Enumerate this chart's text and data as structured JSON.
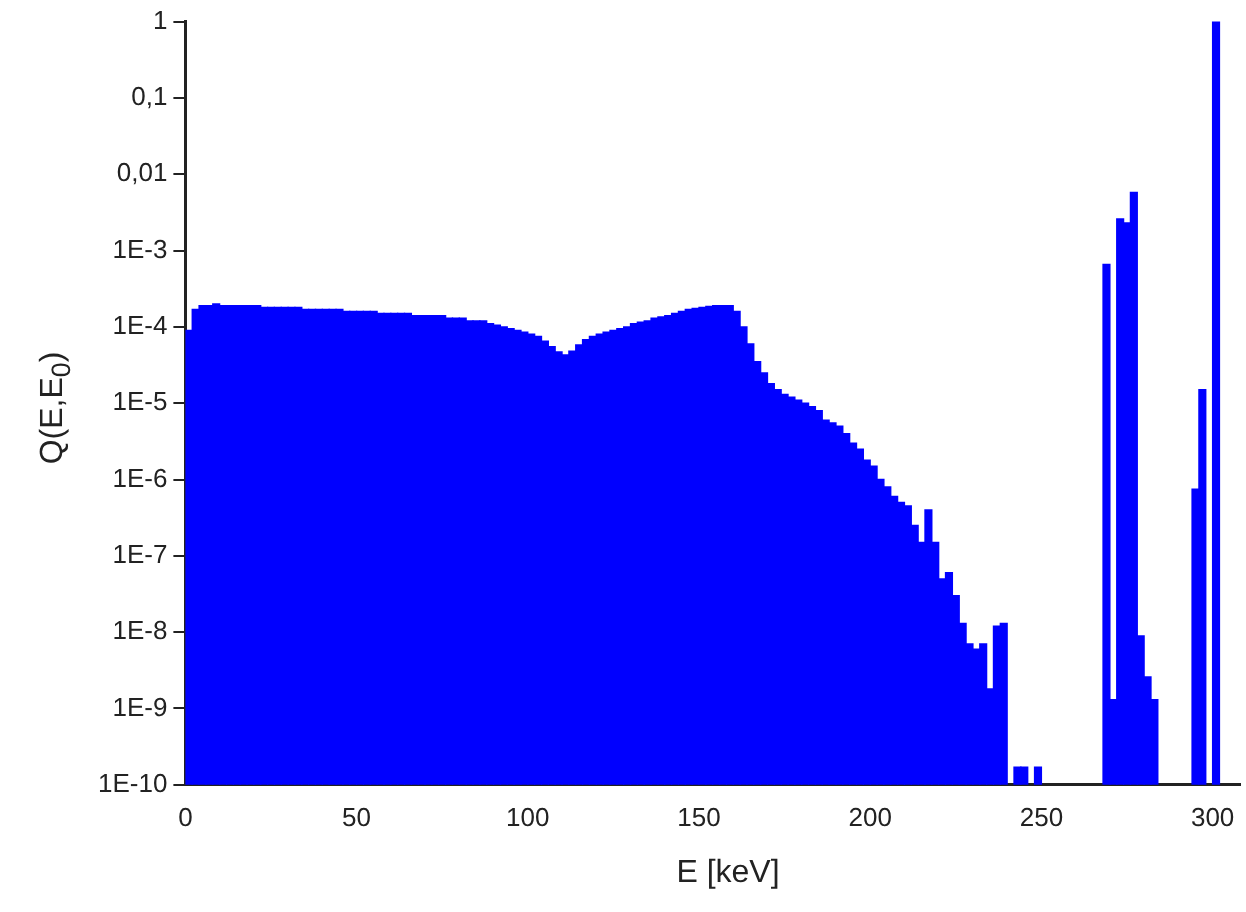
{
  "chart_data": {
    "type": "histogram",
    "xlabel": "E [keV]",
    "ylabel": "Q(E,E$_{0}$)",
    "log": "y",
    "grid": false,
    "color": "#0000ff",
    "xlim": [
      0,
      308
    ],
    "xticks": [
      0,
      50,
      100,
      150,
      200,
      250,
      300
    ],
    "ylim": [
      1e-10,
      1
    ],
    "yticks": [
      1,
      {
        "value": 0.1,
        "label": "0,1"
      },
      {
        "value": 0.01,
        "label": "0,01"
      },
      {
        "value": 0.001,
        "label": "1E-3"
      },
      {
        "value": 0.0001,
        "label": "1E-4"
      },
      {
        "value": 1e-05,
        "label": "1E-5"
      },
      {
        "value": 1e-06,
        "label": "1E-6"
      },
      {
        "value": 1e-07,
        "label": "1E-7"
      },
      {
        "value": 1e-08,
        "label": "1E-8"
      },
      {
        "value": 1e-09,
        "label": "1E-9"
      },
      {
        "value": 1e-10,
        "label": "1E-10"
      }
    ],
    "bins": [
      0,
      2,
      4,
      6,
      8,
      10,
      12,
      14,
      16,
      18,
      20,
      22,
      24,
      26,
      28,
      30,
      32,
      34,
      36,
      38,
      40,
      42,
      44,
      46,
      48,
      50,
      52,
      54,
      56,
      58,
      60,
      62,
      64,
      66,
      68,
      70,
      72,
      74,
      76,
      78,
      80,
      82,
      84,
      86,
      88,
      90,
      92,
      94,
      96,
      98,
      100,
      102,
      104,
      106,
      108,
      110,
      112,
      114,
      116,
      118,
      120,
      122,
      124,
      126,
      128,
      130,
      132,
      134,
      136,
      138,
      140,
      142,
      144,
      146,
      148,
      150,
      152,
      154,
      156,
      158,
      160,
      162,
      164,
      166,
      168,
      170,
      172,
      174,
      176,
      178,
      180,
      182,
      184,
      186,
      188,
      190,
      192,
      194,
      196,
      198,
      200,
      202,
      204,
      206,
      208,
      210,
      212,
      214,
      216,
      218,
      220,
      222,
      224,
      226,
      228,
      230,
      232,
      234,
      236,
      238,
      240,
      242,
      244,
      246,
      248,
      250,
      252,
      254,
      256,
      258,
      260,
      262,
      264,
      266,
      268,
      270,
      272,
      274,
      276,
      278,
      280,
      282,
      284,
      286,
      288,
      290,
      292,
      294,
      296,
      298,
      300,
      302
    ],
    "values": [
      9e-05,
      0.00017,
      0.00019,
      0.00019,
      0.0002,
      0.00019,
      0.00019,
      0.00019,
      0.00019,
      0.00019,
      0.00019,
      0.00018,
      0.00018,
      0.00018,
      0.00018,
      0.00018,
      0.00018,
      0.00017,
      0.00017,
      0.00017,
      0.00017,
      0.00017,
      0.00017,
      0.00016,
      0.00016,
      0.00016,
      0.00016,
      0.00016,
      0.00015,
      0.00015,
      0.00015,
      0.00015,
      0.00015,
      0.00014,
      0.00014,
      0.00014,
      0.00014,
      0.00014,
      0.00013,
      0.00013,
      0.00013,
      0.00012,
      0.00012,
      0.00012,
      0.00011,
      0.000105,
      0.0001,
      9.5e-05,
      9e-05,
      8.5e-05,
      8e-05,
      7.5e-05,
      6.5e-05,
      5.5e-05,
      4.7e-05,
      4.3e-05,
      4.8e-05,
      5.8e-05,
      6.8e-05,
      7.5e-05,
      8e-05,
      8.5e-05,
      9e-05,
      9.5e-05,
      0.0001,
      0.00011,
      0.000115,
      0.00012,
      0.00013,
      0.000135,
      0.00014,
      0.00015,
      0.00016,
      0.00017,
      0.000175,
      0.00018,
      0.000185,
      0.00019,
      0.00019,
      0.00019,
      0.00016,
      0.0001,
      6e-05,
      3.5e-05,
      2.5e-05,
      1.8e-05,
      1.5e-05,
      1.3e-05,
      1.2e-05,
      1.1e-05,
      1e-05,
      9e-06,
      8e-06,
      6e-06,
      5.5e-06,
      5e-06,
      4e-06,
      3e-06,
      2.5e-06,
      1.8e-06,
      1.5e-06,
      1e-06,
      8e-07,
      6e-07,
      5e-07,
      4.5e-07,
      2.5e-07,
      1.5e-07,
      4e-07,
      1.5e-07,
      5e-08,
      6e-08,
      3e-08,
      1.3e-08,
      7e-09,
      6e-09,
      7e-09,
      1.8e-09,
      1.2e-08,
      1.3e-08,
      null,
      1.7e-10,
      1.7e-10,
      null,
      1.7e-10,
      null,
      null,
      null,
      null,
      null,
      null,
      null,
      null,
      null,
      0.00066,
      1.3e-09,
      0.0026,
      0.0023,
      0.0058,
      8.9e-09,
      2.6e-09,
      1.3e-09,
      null,
      null,
      null,
      null,
      null,
      7.5e-07,
      1.5e-05,
      null,
      1
    ]
  }
}
